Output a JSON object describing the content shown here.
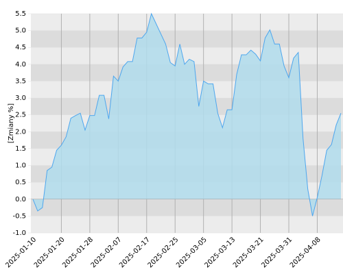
{
  "chart_data": {
    "type": "area",
    "y_label": "[Zmiany %]",
    "categories": [
      "2025-01-10",
      null,
      null,
      null,
      null,
      null,
      "2025-01-20",
      null,
      null,
      null,
      null,
      null,
      "2025-01-28",
      null,
      null,
      null,
      null,
      null,
      "2025-02-07",
      null,
      null,
      null,
      null,
      null,
      "2025-02-17",
      null,
      null,
      null,
      null,
      null,
      "2025-02-25",
      null,
      null,
      null,
      null,
      null,
      "2025-03-05",
      null,
      null,
      null,
      null,
      null,
      "2025-03-13",
      null,
      null,
      null,
      null,
      null,
      "2025-03-21",
      null,
      null,
      null,
      null,
      null,
      "2025-03-31",
      null,
      null,
      null,
      null,
      null,
      "2025-04-08",
      null,
      null,
      null,
      null,
      null
    ],
    "values": [
      0.0,
      -0.35,
      -0.25,
      0.85,
      0.95,
      1.45,
      1.6,
      1.85,
      2.4,
      2.48,
      2.55,
      2.05,
      2.48,
      2.48,
      3.08,
      3.08,
      2.38,
      3.65,
      3.5,
      3.92,
      4.08,
      4.08,
      4.78,
      4.78,
      4.95,
      5.5,
      5.2,
      4.9,
      4.6,
      4.05,
      3.95,
      4.6,
      4.0,
      4.15,
      4.08,
      2.75,
      3.5,
      3.42,
      3.42,
      2.55,
      2.12,
      2.65,
      2.65,
      3.7,
      4.28,
      4.28,
      4.42,
      4.3,
      4.1,
      4.78,
      5.02,
      4.6,
      4.6,
      3.95,
      3.6,
      4.18,
      4.35,
      1.8,
      0.3,
      -0.5,
      0.05,
      0.7,
      1.45,
      1.62,
      2.2,
      2.55
    ],
    "color": "#4da6ee",
    "fill": "#b0dcec",
    "ylim": [
      -1,
      5.5
    ],
    "yticks": [
      {
        "value": -1,
        "label": "-1.0"
      },
      -0.5,
      {
        "value": 0,
        "label": "0.0"
      },
      0.5,
      {
        "value": 1,
        "label": "1.0"
      },
      1.5,
      {
        "value": 2,
        "label": "2.0"
      },
      2.5,
      {
        "value": 3,
        "label": "3.0"
      },
      3.5,
      {
        "value": 4,
        "label": "4.0"
      },
      4.5,
      {
        "value": 5,
        "label": "5.0"
      },
      5.5
    ],
    "grid": true
  }
}
